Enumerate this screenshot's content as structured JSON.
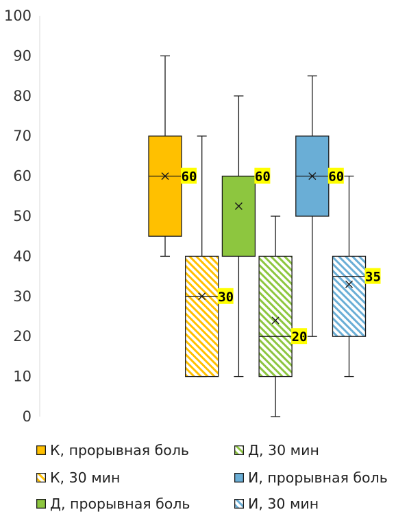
{
  "chart_data": {
    "type": "box",
    "ylim": [
      0,
      100
    ],
    "yticks": [
      "0",
      "10",
      "20",
      "30",
      "40",
      "50",
      "60",
      "70",
      "80",
      "90",
      "100"
    ],
    "grid": false,
    "legend_position": "bottom",
    "series": [
      {
        "name": "К, прорывная боль",
        "color": "#ffc000",
        "pattern": "solid",
        "min": 40,
        "q1": 45,
        "median": 60,
        "q3": 70,
        "max": 90,
        "mean": 60,
        "median_label": "60"
      },
      {
        "name": "К, 30 мин",
        "color": "#ffc000",
        "pattern": "hatched",
        "min": 10,
        "q1": 10,
        "median": 30,
        "q3": 40,
        "max": 70,
        "mean": 30,
        "median_label": "30"
      },
      {
        "name": "Д, прорывная боль",
        "color": "#8dc63f",
        "pattern": "solid",
        "min": 10,
        "q1": 40,
        "median": 60,
        "q3": 60,
        "max": 80,
        "mean": 52.5,
        "median_label": "60"
      },
      {
        "name": "Д, 30 мин",
        "color": "#8dc63f",
        "pattern": "hatched",
        "min": 0,
        "q1": 10,
        "median": 20,
        "q3": 40,
        "max": 50,
        "mean": 24,
        "median_label": "20"
      },
      {
        "name": "И, прорывная боль",
        "color": "#6aaed6",
        "pattern": "solid",
        "min": 20,
        "q1": 50,
        "median": 60,
        "q3": 70,
        "max": 85,
        "mean": 60,
        "median_label": "60"
      },
      {
        "name": "И, 30 мин",
        "color": "#6aaed6",
        "pattern": "hatched",
        "min": 10,
        "q1": 20,
        "median": 35,
        "q3": 40,
        "max": 60,
        "mean": 33,
        "median_label": "35"
      }
    ]
  },
  "legend": {
    "items": [
      {
        "label": "К, прорывная боль",
        "color": "#ffc000",
        "pattern": "solid"
      },
      {
        "label": "Д, 30 мин",
        "color": "#8dc63f",
        "pattern": "hatched"
      },
      {
        "label": "К, 30 мин",
        "color": "#ffc000",
        "pattern": "hatched"
      },
      {
        "label": "И, прорывная боль",
        "color": "#6aaed6",
        "pattern": "solid"
      },
      {
        "label": "Д, прорывная боль",
        "color": "#8dc63f",
        "pattern": "solid"
      },
      {
        "label": "И, 30 мин",
        "color": "#6aaed6",
        "pattern": "hatched"
      }
    ]
  }
}
